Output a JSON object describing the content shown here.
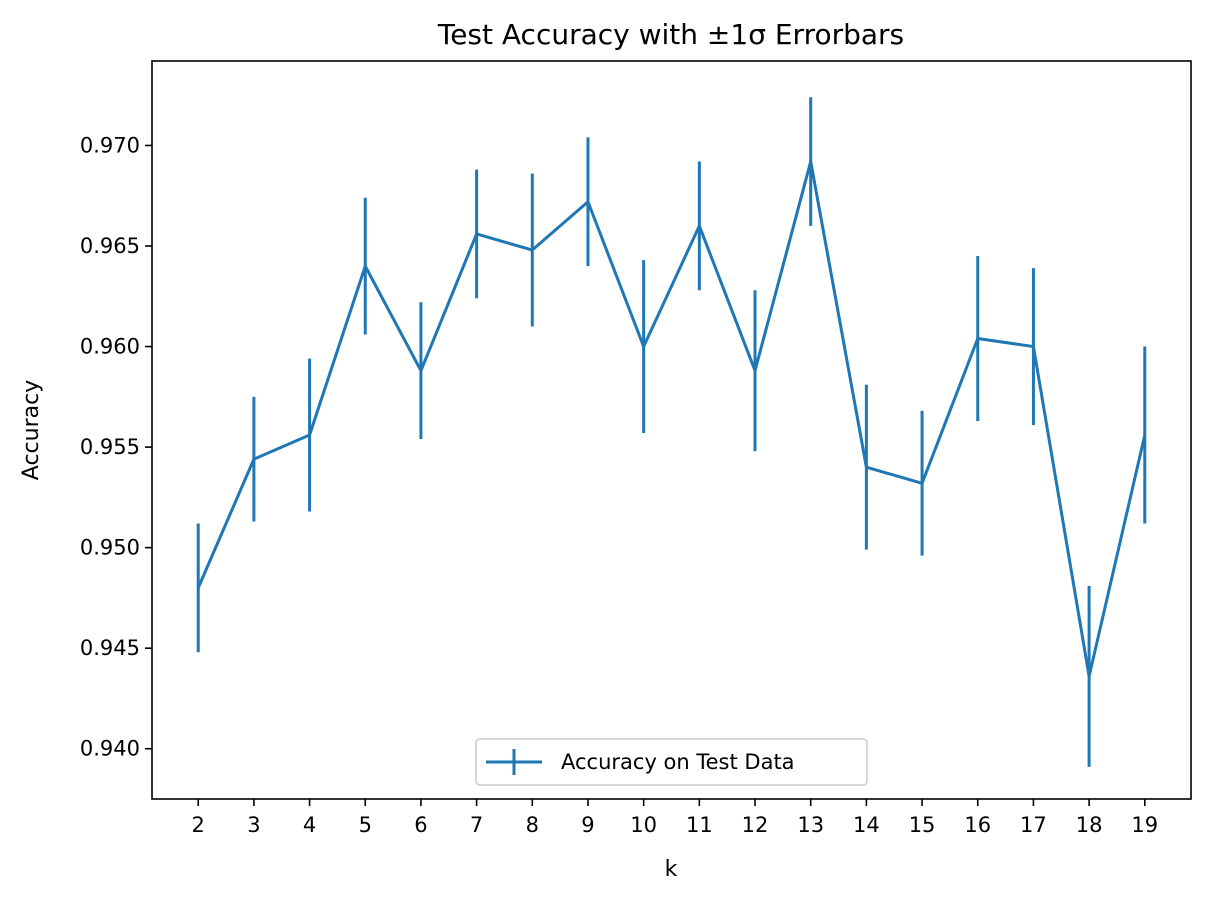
{
  "chart_data": {
    "type": "line",
    "title": "Test Accuracy with ±1σ Errorbars",
    "xlabel": "k",
    "ylabel": "Accuracy",
    "x": [
      2,
      3,
      4,
      5,
      6,
      7,
      8,
      9,
      10,
      11,
      12,
      13,
      14,
      15,
      16,
      17,
      18,
      19
    ],
    "xticks": [
      "2",
      "3",
      "4",
      "5",
      "6",
      "7",
      "8",
      "9",
      "10",
      "11",
      "12",
      "13",
      "14",
      "15",
      "16",
      "17",
      "18",
      "19"
    ],
    "yticks": [
      "0.940",
      "0.945",
      "0.950",
      "0.955",
      "0.960",
      "0.965",
      "0.970"
    ],
    "ytick_values": [
      0.94,
      0.945,
      0.95,
      0.955,
      0.96,
      0.965,
      0.97
    ],
    "xlim": [
      1.17,
      19.83
    ],
    "ylim": [
      0.9375,
      0.9742
    ],
    "series": [
      {
        "name": "Accuracy on Test Data",
        "color": "#1f77b4",
        "values": [
          0.948,
          0.9544,
          0.9556,
          0.964,
          0.9588,
          0.9656,
          0.9648,
          0.9672,
          0.96,
          0.966,
          0.9588,
          0.9692,
          0.954,
          0.9532,
          0.9604,
          0.96,
          0.9436,
          0.9556
        ],
        "errors": [
          0.0032,
          0.0031,
          0.0038,
          0.0034,
          0.0034,
          0.0032,
          0.0038,
          0.0032,
          0.0043,
          0.0032,
          0.004,
          0.0032,
          0.0041,
          0.0036,
          0.0041,
          0.0039,
          0.0045,
          0.0044
        ]
      }
    ],
    "grid": false,
    "legend_position": "lower center"
  }
}
